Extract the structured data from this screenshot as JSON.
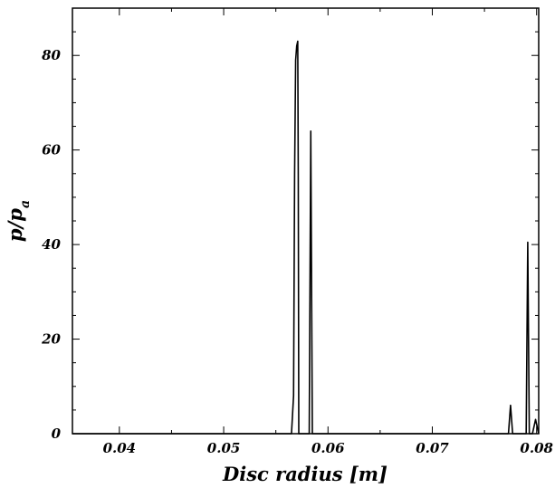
{
  "chart_data": {
    "type": "line",
    "title": "",
    "xlabel": "Disc radius [m]",
    "ylabel_main": "p/p",
    "ylabel_sub": "a",
    "xlim": [
      0.0355,
      0.0802
    ],
    "ylim": [
      0,
      90
    ],
    "grid": false,
    "legend": "none",
    "x_ticks": [
      0.04,
      0.05,
      0.06,
      0.07,
      0.08
    ],
    "x_tick_labels": [
      "0.04",
      "0.05",
      "0.06",
      "0.07",
      "0.08"
    ],
    "x_minor_step": 0.005,
    "y_ticks": [
      0,
      20,
      40,
      60,
      80
    ],
    "y_tick_labels": [
      "0",
      "20",
      "40",
      "60",
      "80"
    ],
    "y_minor_step": 5,
    "series": [
      {
        "x": [
          0.0355,
          0.0565,
          0.0567,
          0.0568,
          0.0569,
          0.057,
          0.0571,
          0.05715,
          0.0572,
          0.0574,
          0.0582,
          0.05835,
          0.0585,
          0.0587,
          0.0773,
          0.0775,
          0.0777,
          0.079,
          0.07915,
          0.0793,
          0.0796,
          0.0799,
          0.0802
        ],
        "y": [
          0,
          0,
          8,
          55,
          79,
          82,
          83,
          55,
          0,
          0,
          0,
          64,
          0,
          0,
          0,
          6,
          0,
          0,
          40.5,
          0,
          0,
          3,
          0
        ]
      }
    ],
    "color": "#000000"
  }
}
